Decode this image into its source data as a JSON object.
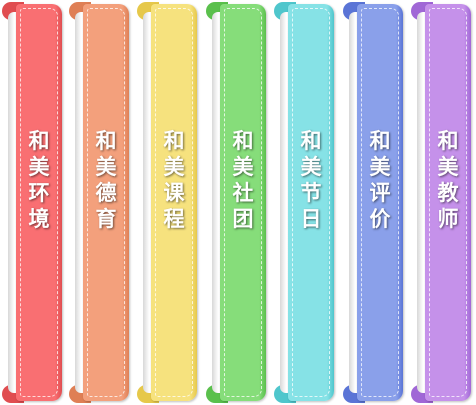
{
  "ribbons": [
    {
      "chars": [
        "和",
        "美",
        "环",
        "境"
      ],
      "color": "#f96f72",
      "dark": "#e04d50",
      "icon": "ribbon-bookmark"
    },
    {
      "chars": [
        "和",
        "美",
        "德",
        "育"
      ],
      "color": "#f3a07c",
      "dark": "#df7f55",
      "icon": "ribbon-bookmark"
    },
    {
      "chars": [
        "和",
        "美",
        "课",
        "程"
      ],
      "color": "#f6e27e",
      "dark": "#e6c84a",
      "icon": "ribbon-bookmark"
    },
    {
      "chars": [
        "和",
        "美",
        "社",
        "团"
      ],
      "color": "#86dd7a",
      "dark": "#5ac04c",
      "icon": "ribbon-bookmark"
    },
    {
      "chars": [
        "和",
        "美",
        "节",
        "日"
      ],
      "color": "#86e2e6",
      "dark": "#4fc6cc",
      "icon": "ribbon-bookmark"
    },
    {
      "chars": [
        "和",
        "美",
        "评",
        "价"
      ],
      "color": "#8aa0ea",
      "dark": "#5a74d6",
      "icon": "ribbon-bookmark"
    },
    {
      "chars": [
        "和",
        "美",
        "教",
        "师"
      ],
      "color": "#c591ea",
      "dark": "#a067d6",
      "icon": "ribbon-bookmark"
    }
  ]
}
